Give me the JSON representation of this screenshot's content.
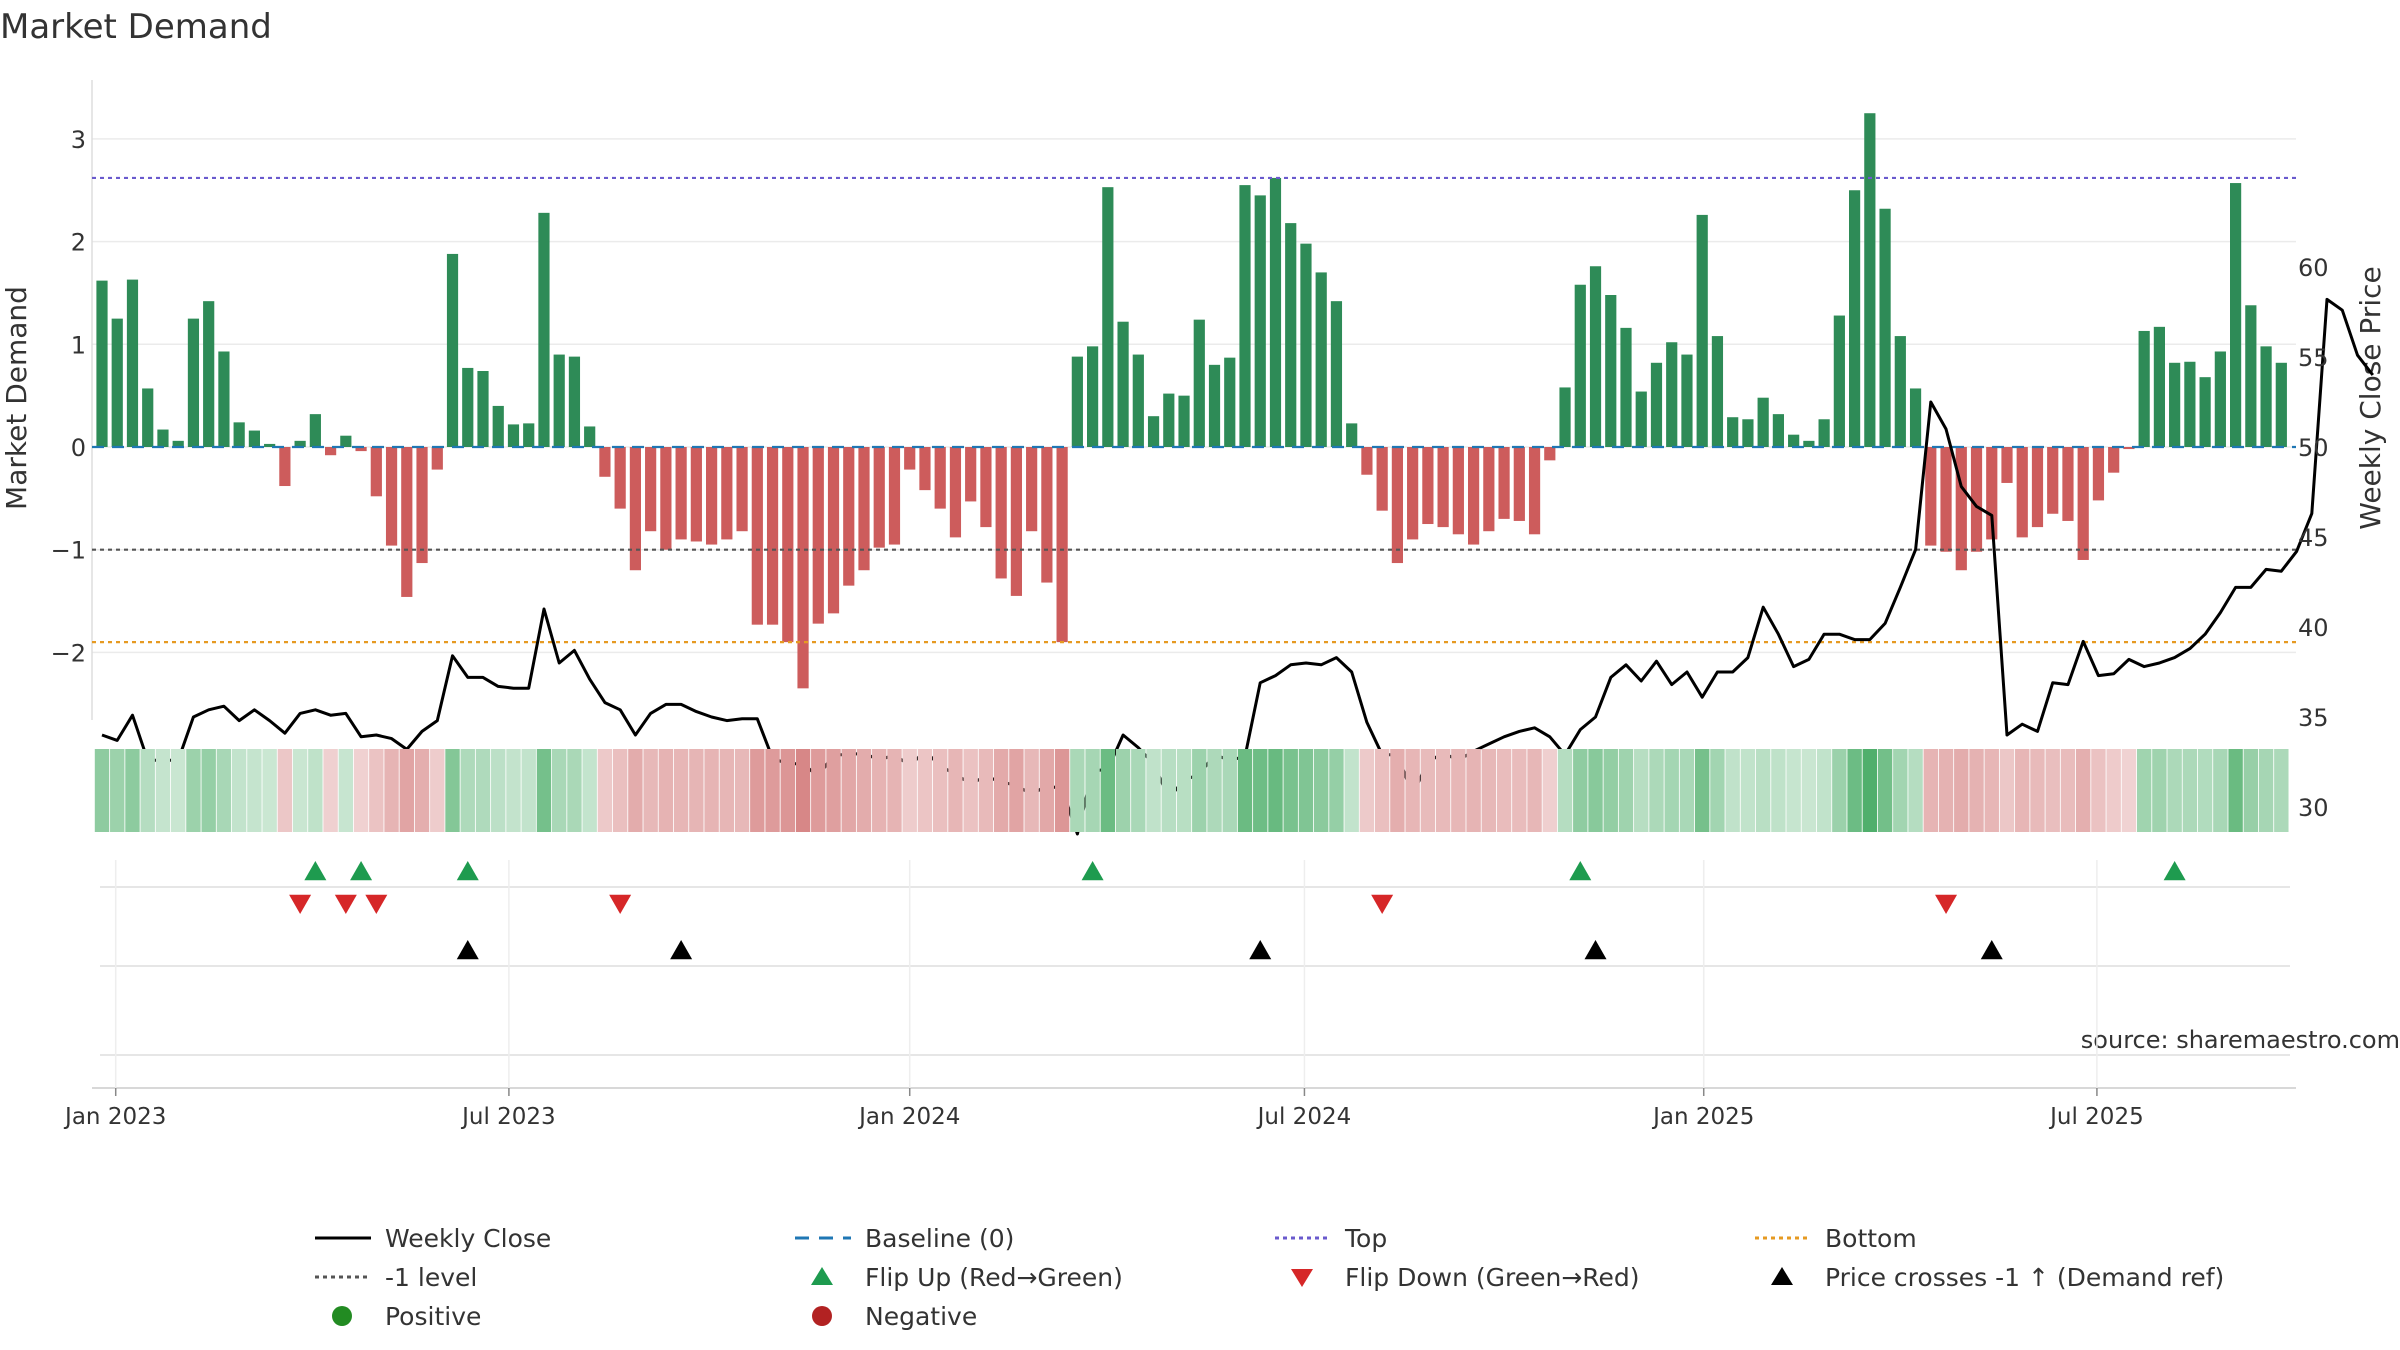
{
  "chart_data": {
    "type": "bar",
    "title": "Market Demand",
    "ylabel": "Market Demand",
    "y2label": "Weekly Close Price",
    "source": "source: sharemaestro.com",
    "ylim": [
      -2.6,
      3.6
    ],
    "y2lim": [
      25.7,
      60.5
    ],
    "yticks": [
      -2,
      -1,
      0,
      1,
      2,
      3
    ],
    "yticklabels": [
      "−2",
      "−1",
      "0",
      "1",
      "2",
      "3"
    ],
    "y2ticks": [
      30,
      35,
      40,
      45,
      50,
      55,
      60
    ],
    "x_start": "2022-12-26",
    "x_step_days": 7,
    "xticks": [
      {
        "label": "Jan 2023",
        "week": 0.9
      },
      {
        "label": "Jul 2023",
        "week": 26.7
      },
      {
        "label": "Jan 2024",
        "week": 53.0
      },
      {
        "label": "Jul 2024",
        "week": 78.9
      },
      {
        "label": "Jan 2025",
        "week": 105.1
      },
      {
        "label": "Jul 2025",
        "week": 130.9
      }
    ],
    "reference_lines": {
      "top": 2.62,
      "minus_one": -1.0,
      "bottom": -1.9,
      "baseline": 0
    },
    "series": [
      {
        "name": "Market Demand",
        "values": [
          1.62,
          1.25,
          1.63,
          0.57,
          0.17,
          0.06,
          1.25,
          1.42,
          0.93,
          0.24,
          0.16,
          0.03,
          -0.38,
          0.06,
          0.32,
          -0.08,
          0.11,
          -0.04,
          -0.48,
          -0.96,
          -1.46,
          -1.13,
          -0.22,
          1.88,
          0.77,
          0.74,
          0.4,
          0.22,
          0.23,
          2.28,
          0.9,
          0.88,
          0.2,
          -0.29,
          -0.6,
          -1.2,
          -0.82,
          -1.0,
          -0.9,
          -0.92,
          -0.95,
          -0.9,
          -0.82,
          -1.73,
          -1.73,
          -1.9,
          -2.35,
          -1.72,
          -1.62,
          -1.35,
          -1.2,
          -0.98,
          -0.95,
          -0.22,
          -0.42,
          -0.6,
          -0.88,
          -0.53,
          -0.78,
          -1.28,
          -1.45,
          -0.82,
          -1.32,
          -1.9,
          0.88,
          0.98,
          2.53,
          1.22,
          0.9,
          0.3,
          0.52,
          0.5,
          1.24,
          0.8,
          0.87,
          2.55,
          2.45,
          2.62,
          2.18,
          1.98,
          1.7,
          1.42,
          0.23,
          -0.27,
          -0.62,
          -1.13,
          -0.9,
          -0.75,
          -0.78,
          -0.85,
          -0.95,
          -0.82,
          -0.7,
          -0.72,
          -0.85,
          -0.13,
          0.58,
          1.58,
          1.76,
          1.48,
          1.16,
          0.54,
          0.82,
          1.02,
          0.9,
          2.26,
          1.08,
          0.29,
          0.27,
          0.48,
          0.32,
          0.12,
          0.06,
          0.27,
          1.28,
          2.5,
          3.25,
          2.32,
          1.08,
          0.57,
          -0.96,
          -1.02,
          -1.2,
          -1.02,
          -0.9,
          -0.35,
          -0.88,
          -0.78,
          -0.65,
          -0.72,
          -1.1,
          -0.52,
          -0.25,
          -0.02,
          1.13,
          1.17,
          0.82,
          0.83,
          0.68,
          0.93,
          2.57,
          1.38,
          0.98,
          0.82
        ]
      },
      {
        "name": "Weekly Close",
        "axis": "right",
        "values": [
          34.0,
          33.7,
          35.1,
          32.6,
          32.6,
          32.6,
          35.0,
          35.4,
          35.6,
          34.8,
          35.4,
          34.8,
          34.1,
          35.2,
          35.4,
          35.1,
          35.2,
          33.9,
          34.0,
          33.8,
          33.2,
          34.2,
          34.8,
          38.4,
          37.2,
          37.2,
          36.7,
          36.6,
          36.6,
          41.0,
          38.0,
          38.7,
          37.1,
          35.8,
          35.4,
          34.0,
          35.2,
          35.7,
          35.7,
          35.3,
          35.0,
          34.8,
          34.9,
          34.9,
          32.7,
          32.4,
          32.4,
          31.7,
          32.9,
          32.9,
          33.0,
          32.6,
          32.9,
          32.3,
          33.1,
          32.3,
          31.8,
          31.3,
          31.7,
          31.4,
          31.2,
          30.7,
          31.2,
          31.0,
          28.5,
          32.0,
          32.1,
          34.0,
          33.3,
          32.4,
          30.5,
          31.5,
          31.8,
          32.9,
          32.6,
          32.8,
          36.9,
          37.3,
          37.9,
          38.0,
          37.9,
          38.3,
          37.5,
          34.7,
          32.9,
          32.9,
          30.7,
          32.5,
          33.0,
          32.6,
          33.1,
          33.5,
          33.9,
          34.2,
          34.4,
          33.9,
          32.9,
          34.3,
          35.0,
          37.2,
          37.9,
          37.0,
          38.1,
          36.8,
          37.5,
          36.1,
          37.5,
          37.5,
          38.3,
          41.1,
          39.6,
          37.8,
          38.2,
          39.6,
          39.6,
          39.3,
          39.3,
          40.2,
          42.2,
          44.3,
          52.5,
          51.0,
          47.8,
          46.7,
          46.2,
          34.0,
          34.6,
          34.2,
          36.9,
          36.8,
          39.2,
          37.3,
          37.4,
          38.2,
          37.8,
          38.0,
          38.3,
          38.8,
          39.6,
          40.8,
          42.2,
          42.2,
          43.2,
          43.1,
          44.2,
          46.3,
          58.2,
          57.6,
          55.1,
          54.0
        ]
      }
    ],
    "heat_strip": "demand value color band (green positive, red negative)",
    "markers": {
      "flip_up_weeks": [
        14,
        17,
        24,
        65,
        97,
        136
      ],
      "flip_down_weeks": [
        13,
        16,
        18,
        34,
        84,
        121
      ],
      "price_cross_weeks": [
        24,
        38,
        76,
        98,
        124
      ]
    },
    "colors": {
      "positive": "#2e8b57",
      "negative": "#cd5c5c",
      "close": "#000000",
      "baseline": "#1f77b4",
      "top": "#6a5acd",
      "minus_one": "#555555",
      "bottom": "#e69a22",
      "flip_up": "#1e9b4f",
      "flip_down": "#d62728",
      "price_cross": "#000000",
      "legend_positive": "#228b22",
      "legend_negative": "#b22222"
    }
  },
  "legend": {
    "items": [
      {
        "label": "Weekly Close",
        "kind": "line-solid",
        "color": "#000000"
      },
      {
        "label": "Baseline (0)",
        "kind": "line-dash",
        "color": "#1f77b4"
      },
      {
        "label": "Top",
        "kind": "line-dot",
        "color": "#6a5acd"
      },
      {
        "label": "Bottom",
        "kind": "line-dot",
        "color": "#e69a22"
      },
      {
        "label": "-1 level",
        "kind": "line-dot",
        "color": "#555555"
      },
      {
        "label": "Flip Up (Red→Green)",
        "kind": "tri-up",
        "color": "#1e9b4f"
      },
      {
        "label": "Flip Down (Green→Red)",
        "kind": "tri-down",
        "color": "#d62728"
      },
      {
        "label": "Price crosses -1 ↑ (Demand ref)",
        "kind": "tri-up",
        "color": "#000000"
      },
      {
        "label": "Positive",
        "kind": "dot",
        "color": "#228b22"
      },
      {
        "label": "Negative",
        "kind": "dot",
        "color": "#b22222"
      }
    ]
  }
}
